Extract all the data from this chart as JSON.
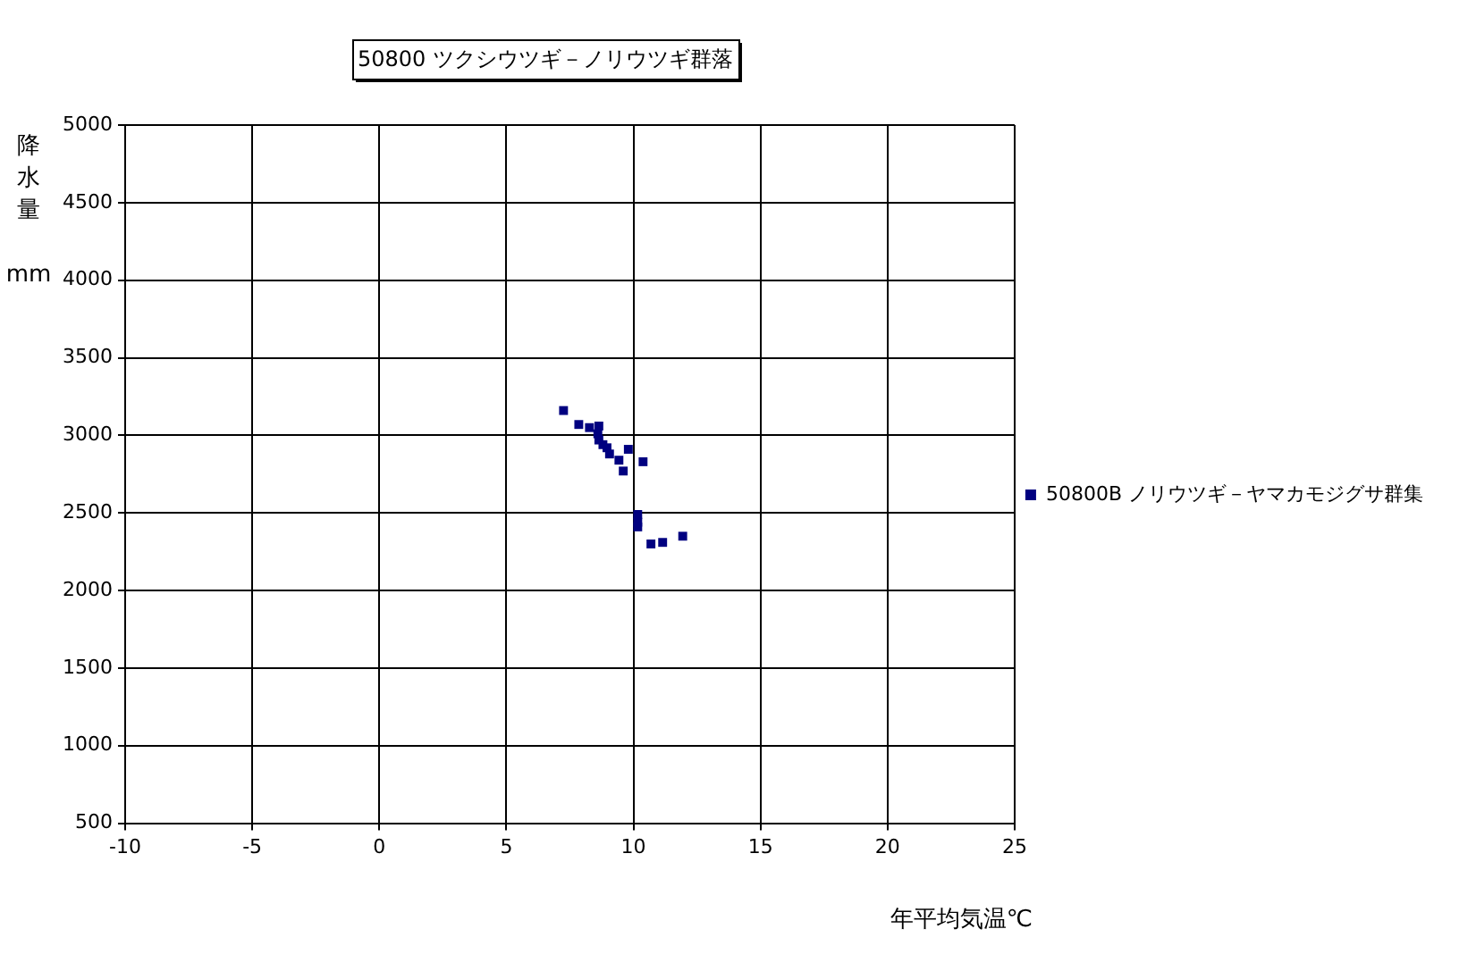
{
  "chart_data": {
    "type": "scatter",
    "title": "50800 ツクシウツギ－ノリウツギ群落",
    "xlabel": "年平均気温℃",
    "ylabel": "降水量 mm",
    "xlim": [
      -10,
      25
    ],
    "xticks": [
      -10,
      -5,
      0,
      5,
      10,
      15,
      20,
      25
    ],
    "ylim": [
      500,
      5000
    ],
    "yticks": [
      500,
      1000,
      1500,
      2000,
      2500,
      3000,
      3500,
      4000,
      4500,
      5000
    ],
    "grid": true,
    "legend": "right",
    "marker": "square",
    "series": [
      {
        "name": "50800B ノリウツギ－ヤマカモジグサ群集",
        "color": "#000080",
        "x": [
          7.25,
          7.85,
          8.27,
          8.64,
          8.6,
          8.64,
          8.8,
          8.96,
          9.06,
          9.43,
          9.6,
          9.8,
          10.38,
          10.17,
          10.17,
          10.17,
          10.69,
          11.15,
          11.94
        ],
        "values": [
          3160,
          3070,
          3050,
          3060,
          3010,
          2970,
          2940,
          2920,
          2880,
          2840,
          2770,
          2910,
          2830,
          2490,
          2440,
          2410,
          2300,
          2310,
          2350
        ]
      }
    ]
  }
}
